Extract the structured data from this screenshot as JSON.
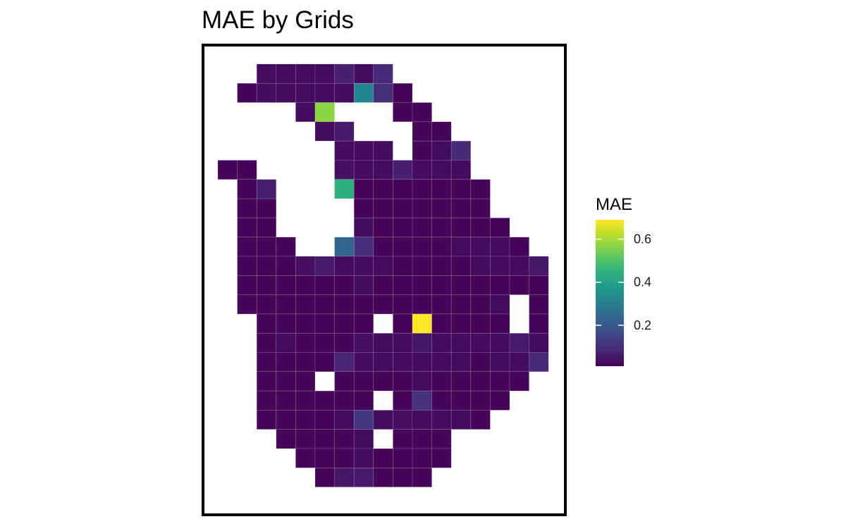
{
  "chart_data": {
    "type": "heatmap",
    "title": "MAE by Grids",
    "xlabel": "",
    "ylabel": "",
    "grid": false,
    "legend": {
      "title": "MAE",
      "placement": "right",
      "type": "colorbar",
      "range": [
        0.01,
        0.69
      ],
      "ticks": [
        0.2,
        0.4,
        0.6
      ],
      "tick_labels": [
        "0.2",
        "0.4",
        "0.6"
      ],
      "colormap": "viridis",
      "colors": [
        "#440154",
        "#482878",
        "#3e4989",
        "#31688e",
        "#26828e",
        "#1f9e89",
        "#35b779",
        "#6ece58",
        "#b5de2b",
        "#fde725"
      ]
    },
    "columns": 17,
    "rows": 22,
    "cells": [
      [
        2,
        0,
        0.03
      ],
      [
        3,
        0,
        0.03
      ],
      [
        4,
        0,
        0.03
      ],
      [
        5,
        0,
        0.03
      ],
      [
        6,
        0,
        0.07
      ],
      [
        7,
        0,
        0.03
      ],
      [
        8,
        0,
        0.09
      ],
      [
        1,
        1,
        0.02
      ],
      [
        2,
        1,
        0.03
      ],
      [
        3,
        1,
        0.03
      ],
      [
        4,
        1,
        0.03
      ],
      [
        5,
        1,
        0.03
      ],
      [
        6,
        1,
        0.03
      ],
      [
        7,
        1,
        0.32
      ],
      [
        8,
        1,
        0.1
      ],
      [
        9,
        1,
        0.02
      ],
      [
        4,
        2,
        0.03
      ],
      [
        5,
        2,
        0.57
      ],
      [
        9,
        2,
        0.02
      ],
      [
        10,
        2,
        0.02
      ],
      [
        5,
        3,
        0.03
      ],
      [
        6,
        3,
        0.06
      ],
      [
        10,
        3,
        0.02
      ],
      [
        11,
        3,
        0.02
      ],
      [
        6,
        4,
        0.03
      ],
      [
        7,
        4,
        0.03
      ],
      [
        8,
        4,
        0.03
      ],
      [
        10,
        4,
        0.02
      ],
      [
        11,
        4,
        0.03
      ],
      [
        12,
        4,
        0.09
      ],
      [
        0,
        5,
        0.02
      ],
      [
        1,
        5,
        0.02
      ],
      [
        6,
        5,
        0.04
      ],
      [
        7,
        5,
        0.03
      ],
      [
        8,
        5,
        0.03
      ],
      [
        9,
        5,
        0.07
      ],
      [
        10,
        5,
        0.03
      ],
      [
        11,
        5,
        0.03
      ],
      [
        12,
        5,
        0.03
      ],
      [
        1,
        6,
        0.02
      ],
      [
        2,
        6,
        0.07
      ],
      [
        6,
        6,
        0.44
      ],
      [
        7,
        6,
        0.02
      ],
      [
        8,
        6,
        0.02
      ],
      [
        9,
        6,
        0.02
      ],
      [
        10,
        6,
        0.02
      ],
      [
        11,
        6,
        0.02
      ],
      [
        12,
        6,
        0.02
      ],
      [
        13,
        6,
        0.02
      ],
      [
        1,
        7,
        0.02
      ],
      [
        2,
        7,
        0.02
      ],
      [
        7,
        7,
        0.02
      ],
      [
        8,
        7,
        0.02
      ],
      [
        9,
        7,
        0.02
      ],
      [
        10,
        7,
        0.02
      ],
      [
        11,
        7,
        0.02
      ],
      [
        12,
        7,
        0.02
      ],
      [
        13,
        7,
        0.02
      ],
      [
        1,
        8,
        0.02
      ],
      [
        2,
        8,
        0.02
      ],
      [
        7,
        8,
        0.03
      ],
      [
        8,
        8,
        0.02
      ],
      [
        9,
        8,
        0.02
      ],
      [
        10,
        8,
        0.02
      ],
      [
        11,
        8,
        0.02
      ],
      [
        12,
        8,
        0.02
      ],
      [
        13,
        8,
        0.02
      ],
      [
        14,
        8,
        0.02
      ],
      [
        1,
        9,
        0.02
      ],
      [
        2,
        9,
        0.02
      ],
      [
        3,
        9,
        0.02
      ],
      [
        6,
        9,
        0.23
      ],
      [
        7,
        9,
        0.1
      ],
      [
        8,
        9,
        0.02
      ],
      [
        9,
        9,
        0.02
      ],
      [
        10,
        9,
        0.02
      ],
      [
        11,
        9,
        0.02
      ],
      [
        12,
        9,
        0.03
      ],
      [
        13,
        9,
        0.03
      ],
      [
        14,
        9,
        0.03
      ],
      [
        15,
        9,
        0.02
      ],
      [
        1,
        10,
        0.02
      ],
      [
        2,
        10,
        0.02
      ],
      [
        3,
        10,
        0.02
      ],
      [
        4,
        10,
        0.04
      ],
      [
        5,
        10,
        0.06
      ],
      [
        6,
        10,
        0.03
      ],
      [
        7,
        10,
        0.03
      ],
      [
        8,
        10,
        0.03
      ],
      [
        9,
        10,
        0.02
      ],
      [
        10,
        10,
        0.02
      ],
      [
        11,
        10,
        0.02
      ],
      [
        12,
        10,
        0.02
      ],
      [
        13,
        10,
        0.03
      ],
      [
        14,
        10,
        0.03
      ],
      [
        15,
        10,
        0.03
      ],
      [
        16,
        10,
        0.05
      ],
      [
        1,
        11,
        0.02
      ],
      [
        2,
        11,
        0.02
      ],
      [
        3,
        11,
        0.02
      ],
      [
        4,
        11,
        0.02
      ],
      [
        5,
        11,
        0.02
      ],
      [
        6,
        11,
        0.02
      ],
      [
        7,
        11,
        0.03
      ],
      [
        8,
        11,
        0.02
      ],
      [
        9,
        11,
        0.02
      ],
      [
        10,
        11,
        0.02
      ],
      [
        11,
        11,
        0.02
      ],
      [
        12,
        11,
        0.02
      ],
      [
        13,
        11,
        0.02
      ],
      [
        14,
        11,
        0.02
      ],
      [
        15,
        11,
        0.02
      ],
      [
        16,
        11,
        0.02
      ],
      [
        1,
        12,
        0.02
      ],
      [
        2,
        12,
        0.02
      ],
      [
        3,
        12,
        0.02
      ],
      [
        4,
        12,
        0.02
      ],
      [
        5,
        12,
        0.02
      ],
      [
        6,
        12,
        0.02
      ],
      [
        7,
        12,
        0.02
      ],
      [
        8,
        12,
        0.02
      ],
      [
        9,
        12,
        0.02
      ],
      [
        10,
        12,
        0.02
      ],
      [
        11,
        12,
        0.02
      ],
      [
        12,
        12,
        0.02
      ],
      [
        13,
        12,
        0.02
      ],
      [
        14,
        12,
        0.03
      ],
      [
        16,
        12,
        0.02
      ],
      [
        2,
        13,
        0.02
      ],
      [
        3,
        13,
        0.02
      ],
      [
        4,
        13,
        0.02
      ],
      [
        5,
        13,
        0.02
      ],
      [
        6,
        13,
        0.02
      ],
      [
        7,
        13,
        0.02
      ],
      [
        9,
        13,
        0.02
      ],
      [
        10,
        13,
        0.69
      ],
      [
        11,
        13,
        0.02
      ],
      [
        12,
        13,
        0.02
      ],
      [
        13,
        13,
        0.02
      ],
      [
        14,
        13,
        0.02
      ],
      [
        16,
        13,
        0.02
      ],
      [
        2,
        14,
        0.02
      ],
      [
        3,
        14,
        0.03
      ],
      [
        4,
        14,
        0.02
      ],
      [
        5,
        14,
        0.02
      ],
      [
        6,
        14,
        0.02
      ],
      [
        7,
        14,
        0.04
      ],
      [
        8,
        14,
        0.03
      ],
      [
        9,
        14,
        0.03
      ],
      [
        10,
        14,
        0.05
      ],
      [
        11,
        14,
        0.03
      ],
      [
        12,
        14,
        0.03
      ],
      [
        13,
        14,
        0.03
      ],
      [
        14,
        14,
        0.03
      ],
      [
        15,
        14,
        0.06
      ],
      [
        16,
        14,
        0.03
      ],
      [
        2,
        15,
        0.02
      ],
      [
        3,
        15,
        0.02
      ],
      [
        4,
        15,
        0.02
      ],
      [
        5,
        15,
        0.02
      ],
      [
        6,
        15,
        0.08
      ],
      [
        7,
        15,
        0.03
      ],
      [
        8,
        15,
        0.03
      ],
      [
        9,
        15,
        0.03
      ],
      [
        10,
        15,
        0.03
      ],
      [
        11,
        15,
        0.03
      ],
      [
        12,
        15,
        0.03
      ],
      [
        13,
        15,
        0.02
      ],
      [
        14,
        15,
        0.03
      ],
      [
        15,
        15,
        0.03
      ],
      [
        16,
        15,
        0.09
      ],
      [
        2,
        16,
        0.02
      ],
      [
        3,
        16,
        0.02
      ],
      [
        4,
        16,
        0.02
      ],
      [
        6,
        16,
        0.02
      ],
      [
        7,
        16,
        0.02
      ],
      [
        8,
        16,
        0.02
      ],
      [
        9,
        16,
        0.02
      ],
      [
        10,
        16,
        0.03
      ],
      [
        11,
        16,
        0.02
      ],
      [
        12,
        16,
        0.02
      ],
      [
        13,
        16,
        0.02
      ],
      [
        14,
        16,
        0.02
      ],
      [
        15,
        16,
        0.02
      ],
      [
        2,
        17,
        0.02
      ],
      [
        3,
        17,
        0.02
      ],
      [
        4,
        17,
        0.02
      ],
      [
        5,
        17,
        0.02
      ],
      [
        6,
        17,
        0.02
      ],
      [
        7,
        17,
        0.02
      ],
      [
        9,
        17,
        0.02
      ],
      [
        10,
        17,
        0.11
      ],
      [
        11,
        17,
        0.02
      ],
      [
        12,
        17,
        0.02
      ],
      [
        13,
        17,
        0.02
      ],
      [
        14,
        17,
        0.02
      ],
      [
        2,
        18,
        0.02
      ],
      [
        3,
        18,
        0.02
      ],
      [
        4,
        18,
        0.02
      ],
      [
        5,
        18,
        0.02
      ],
      [
        6,
        18,
        0.03
      ],
      [
        7,
        18,
        0.12
      ],
      [
        8,
        18,
        0.03
      ],
      [
        9,
        18,
        0.04
      ],
      [
        10,
        18,
        0.03
      ],
      [
        11,
        18,
        0.03
      ],
      [
        12,
        18,
        0.03
      ],
      [
        13,
        18,
        0.02
      ],
      [
        3,
        19,
        0.02
      ],
      [
        4,
        19,
        0.02
      ],
      [
        5,
        19,
        0.02
      ],
      [
        6,
        19,
        0.02
      ],
      [
        7,
        19,
        0.03
      ],
      [
        9,
        19,
        0.02
      ],
      [
        10,
        19,
        0.02
      ],
      [
        11,
        19,
        0.02
      ],
      [
        4,
        20,
        0.02
      ],
      [
        5,
        20,
        0.02
      ],
      [
        6,
        20,
        0.02
      ],
      [
        7,
        20,
        0.03
      ],
      [
        8,
        20,
        0.02
      ],
      [
        9,
        20,
        0.02
      ],
      [
        10,
        20,
        0.02
      ],
      [
        11,
        20,
        0.02
      ],
      [
        5,
        21,
        0.02
      ],
      [
        6,
        21,
        0.05
      ],
      [
        7,
        21,
        0.06
      ],
      [
        8,
        21,
        0.02
      ],
      [
        9,
        21,
        0.02
      ],
      [
        10,
        21,
        0.02
      ]
    ]
  }
}
